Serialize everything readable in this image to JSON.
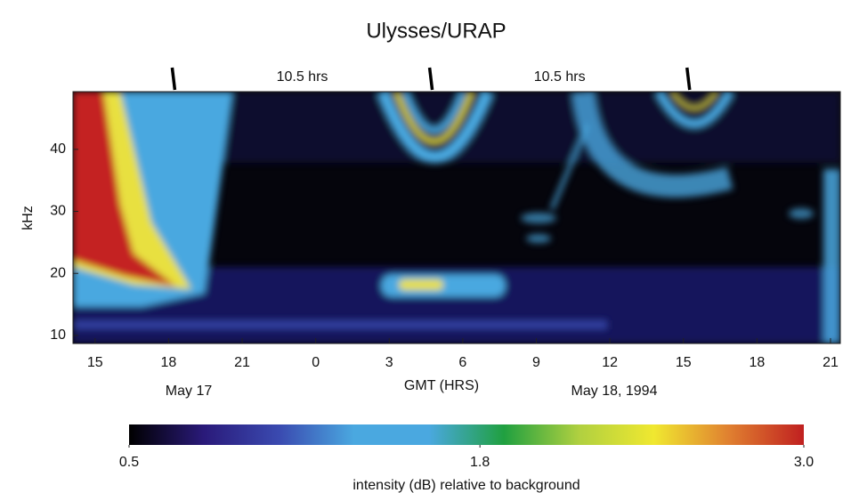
{
  "chart_data": {
    "type": "spectrogram",
    "title": "Ulysses/URAP",
    "y_label": "kHz",
    "x_label": "GMT (HRS)",
    "date_labels": [
      "May 17",
      "May 18, 1994"
    ],
    "xlim": [
      14.1,
      45.4
    ],
    "xticks": [
      15,
      18,
      21,
      {
        "value": 24,
        "label": "0"
      },
      {
        "value": 27,
        "label": "3"
      },
      {
        "value": 30,
        "label": "6"
      },
      {
        "value": 33,
        "label": "9"
      },
      {
        "value": 36,
        "label": "12"
      },
      {
        "value": 39,
        "label": "15"
      },
      {
        "value": 42,
        "label": "18"
      },
      {
        "value": 45,
        "label": "21"
      }
    ],
    "ylim": [
      8.7,
      49.3
    ],
    "yticks": [
      10,
      20,
      30,
      40
    ],
    "markers": [
      18.2,
      28.7,
      39.2
    ],
    "interval_labels": [
      "10.5 hrs",
      "10.5 hrs"
    ],
    "colorbar": {
      "label": "intensity (dB) relative to background",
      "clim": [
        0.5,
        3.0
      ],
      "ticks": [
        0.5,
        1.8,
        {
          "value": 3.0,
          "label": "3.0"
        }
      ],
      "colormap": [
        "#000000",
        "#2a1a7a",
        "#3a4ab0",
        "#4aa8e0",
        "#4aa8e0",
        "#20a040",
        "#b0d040",
        "#f0e830",
        "#e08030",
        "#c02020"
      ]
    }
  }
}
